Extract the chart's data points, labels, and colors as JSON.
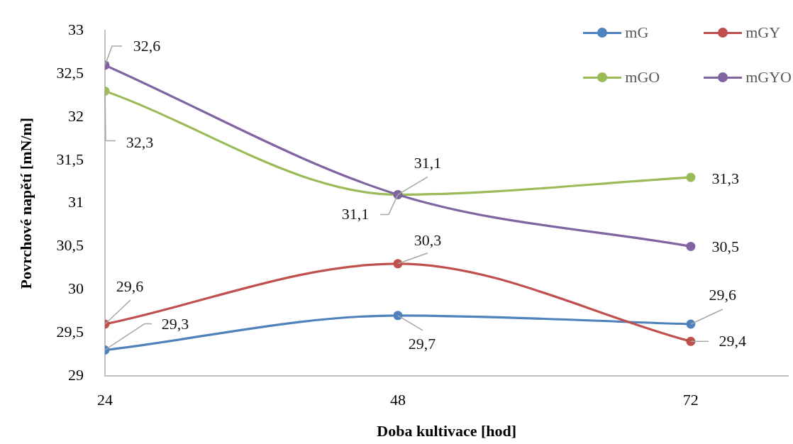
{
  "chart_data": {
    "type": "line",
    "xlabel": "Doba kultivace [hod]",
    "ylabel": "Povrchové napětí [mN/m]",
    "x": [
      24,
      48,
      72
    ],
    "xlim": [
      24,
      80
    ],
    "xticks": [
      24,
      48,
      72
    ],
    "ylim": [
      29,
      33
    ],
    "yticks": [
      29,
      {
        "value": 29.5,
        "label": "29,5"
      },
      30,
      {
        "value": 30.5,
        "label": "30,5"
      },
      31,
      {
        "value": 31.5,
        "label": "31,5"
      },
      32,
      {
        "value": 32.5,
        "label": "32,5"
      },
      33
    ],
    "grid": false,
    "legend": "top right",
    "marker": "circle",
    "line_style": "solid",
    "series": [
      {
        "name": "mG",
        "color": "#4f81bd",
        "values": [
          29.3,
          29.7,
          29.6
        ],
        "value_labels": [
          "29,3",
          "29,7",
          "29,6"
        ]
      },
      {
        "name": "mGY",
        "color": "#c0504d",
        "values": [
          29.6,
          30.3,
          29.4
        ],
        "value_labels": [
          "29,6",
          "30,3",
          "29,4"
        ]
      },
      {
        "name": "mGO",
        "color": "#9bbb59",
        "values": [
          32.3,
          31.1,
          31.3
        ],
        "value_labels": [
          "32,3",
          "31,1",
          "31,3"
        ]
      },
      {
        "name": "mGYO",
        "color": "#8064a2",
        "values": [
          32.6,
          31.1,
          30.5
        ],
        "value_labels": [
          "32,6",
          "31,1",
          "30,5"
        ]
      }
    ]
  }
}
